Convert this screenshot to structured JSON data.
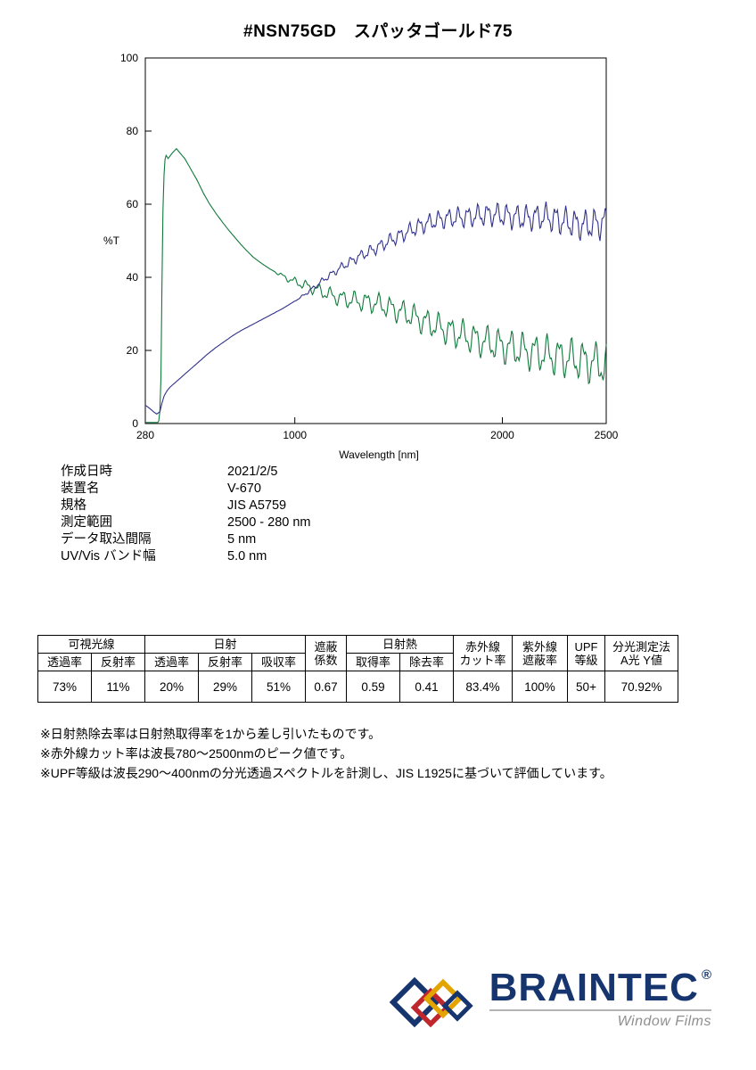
{
  "page": {
    "title": "#NSN75GD　スパッタゴールド75"
  },
  "chart": {
    "ylabel": "%T",
    "xlabel": "Wavelength [nm]",
    "x_ticks": [
      "280",
      "1000",
      "2000",
      "2500"
    ],
    "y_ticks": [
      "0",
      "20",
      "40",
      "60",
      "80",
      "100"
    ]
  },
  "chart_data": {
    "type": "line",
    "title": "",
    "xlabel": "Wavelength [nm]",
    "ylabel": "%T",
    "xlim": [
      280,
      2500
    ],
    "ylim": [
      0,
      100
    ],
    "grid": false,
    "legend": "none",
    "series": [
      {
        "name": "transmittance-green",
        "color": "#117a3c",
        "trend": [
          [
            280,
            0.3
          ],
          [
            340,
            0.3
          ],
          [
            348,
            1
          ],
          [
            354,
            8
          ],
          [
            358,
            25
          ],
          [
            362,
            48
          ],
          [
            366,
            62
          ],
          [
            372,
            71
          ],
          [
            378,
            73.5
          ],
          [
            390,
            72.5
          ],
          [
            410,
            74
          ],
          [
            430,
            75.2
          ],
          [
            450,
            73.8
          ],
          [
            470,
            72.5
          ],
          [
            500,
            69.5
          ],
          [
            530,
            66.5
          ],
          [
            560,
            63
          ],
          [
            590,
            60
          ],
          [
            620,
            57.5
          ],
          [
            650,
            55.2
          ],
          [
            680,
            53
          ],
          [
            710,
            51
          ],
          [
            740,
            49
          ],
          [
            770,
            47.2
          ],
          [
            800,
            45.5
          ],
          [
            840,
            43.8
          ],
          [
            880,
            42.3
          ],
          [
            920,
            41
          ],
          [
            960,
            39.8
          ],
          [
            1000,
            38.8
          ],
          [
            1040,
            38
          ],
          [
            1080,
            37.2
          ],
          [
            1120,
            36.3
          ],
          [
            1160,
            35.4
          ],
          [
            1200,
            34.6
          ],
          [
            1260,
            33.8
          ],
          [
            1320,
            33.4
          ],
          [
            1380,
            33
          ],
          [
            1440,
            32
          ],
          [
            1500,
            30.8
          ],
          [
            1560,
            29.5
          ],
          [
            1620,
            28
          ],
          [
            1700,
            26.2
          ],
          [
            1780,
            24.6
          ],
          [
            1860,
            23.2
          ],
          [
            1940,
            22
          ],
          [
            2020,
            21
          ],
          [
            2100,
            20
          ],
          [
            2180,
            19.2
          ],
          [
            2260,
            18.4
          ],
          [
            2340,
            17.6
          ],
          [
            2420,
            16.8
          ],
          [
            2500,
            16
          ]
        ],
        "fringe": {
          "start": 900,
          "amp": 6,
          "period": 58,
          "phase": 0.3,
          "exp": 0.6
        }
      },
      {
        "name": "reflectance-navy",
        "color": "#32328c",
        "trend": [
          [
            280,
            5
          ],
          [
            300,
            4.2
          ],
          [
            320,
            3.2
          ],
          [
            335,
            2.6
          ],
          [
            350,
            3.2
          ],
          [
            360,
            5.5
          ],
          [
            370,
            7.5
          ],
          [
            385,
            9
          ],
          [
            400,
            10
          ],
          [
            430,
            11.5
          ],
          [
            460,
            13
          ],
          [
            500,
            15
          ],
          [
            540,
            17
          ],
          [
            580,
            19
          ],
          [
            620,
            20.8
          ],
          [
            660,
            22.4
          ],
          [
            700,
            24
          ],
          [
            740,
            25.4
          ],
          [
            780,
            26.6
          ],
          [
            820,
            27.8
          ],
          [
            860,
            29
          ],
          [
            900,
            30.2
          ],
          [
            940,
            31.4
          ],
          [
            980,
            32.8
          ],
          [
            1020,
            34.2
          ],
          [
            1060,
            35.8
          ],
          [
            1100,
            37.6
          ],
          [
            1140,
            39.4
          ],
          [
            1180,
            41
          ],
          [
            1220,
            42.6
          ],
          [
            1260,
            44
          ],
          [
            1300,
            45.4
          ],
          [
            1350,
            46.8
          ],
          [
            1400,
            48.2
          ],
          [
            1450,
            49.8
          ],
          [
            1500,
            51.2
          ],
          [
            1550,
            52.6
          ],
          [
            1600,
            54
          ],
          [
            1650,
            55
          ],
          [
            1700,
            55.8
          ],
          [
            1750,
            56.2
          ],
          [
            1800,
            56.4
          ],
          [
            1850,
            56.6
          ],
          [
            1900,
            57
          ],
          [
            1950,
            57.2
          ],
          [
            2000,
            57
          ],
          [
            2050,
            56.6
          ],
          [
            2100,
            56.2
          ],
          [
            2150,
            56.4
          ],
          [
            2200,
            56.6
          ],
          [
            2250,
            56
          ],
          [
            2300,
            55.2
          ],
          [
            2350,
            54.6
          ],
          [
            2400,
            54.2
          ],
          [
            2450,
            54.6
          ],
          [
            2500,
            55
          ]
        ],
        "fringe": {
          "start": 1000,
          "amp": 4.5,
          "period": 47,
          "phase": 1.4,
          "exp": 0.7
        }
      }
    ]
  },
  "meta": {
    "rows": [
      {
        "label": "作成日時",
        "value": "2021/2/5"
      },
      {
        "label": "装置名",
        "value": "V-670"
      },
      {
        "label": "規格",
        "value": "JIS A5759"
      },
      {
        "label": "測定範囲",
        "value": "2500 - 280 nm"
      },
      {
        "label": "データ取込間隔",
        "value": "5 nm"
      },
      {
        "label": "UV/Vis バンド幅",
        "value": "5.0 nm"
      }
    ]
  },
  "table": {
    "h_visible": "可視光線",
    "h_solar": "日射",
    "h_shading": "遮蔽\n係数",
    "h_solar_heat": "日射熱",
    "h_ir": "赤外線\nカット率",
    "h_uv": "紫外線\n遮蔽率",
    "h_upf": "UPF\n等級",
    "h_spectro": "分光測定法\nA光 Y値",
    "sub": [
      "透過率",
      "反射率",
      "透過率",
      "反射率",
      "吸収率",
      "取得率",
      "除去率"
    ],
    "values": [
      "73%",
      "11%",
      "20%",
      "29%",
      "51%",
      "0.67",
      "0.59",
      "0.41",
      "83.4%",
      "100%",
      "50+",
      "70.92%"
    ]
  },
  "notes": [
    "※日射熱除去率は日射熱取得率を1から差し引いたものです。",
    "※赤外線カット率は波長780～2500nmのピーク値です。",
    "※UPF等級は波長290～400nmの分光透過スペクトルを計測し、JIS L1925に基づいて評価しています。"
  ],
  "logo": {
    "brand": "BRAINTEC",
    "reg": "®",
    "subtitle": "Window Films"
  }
}
